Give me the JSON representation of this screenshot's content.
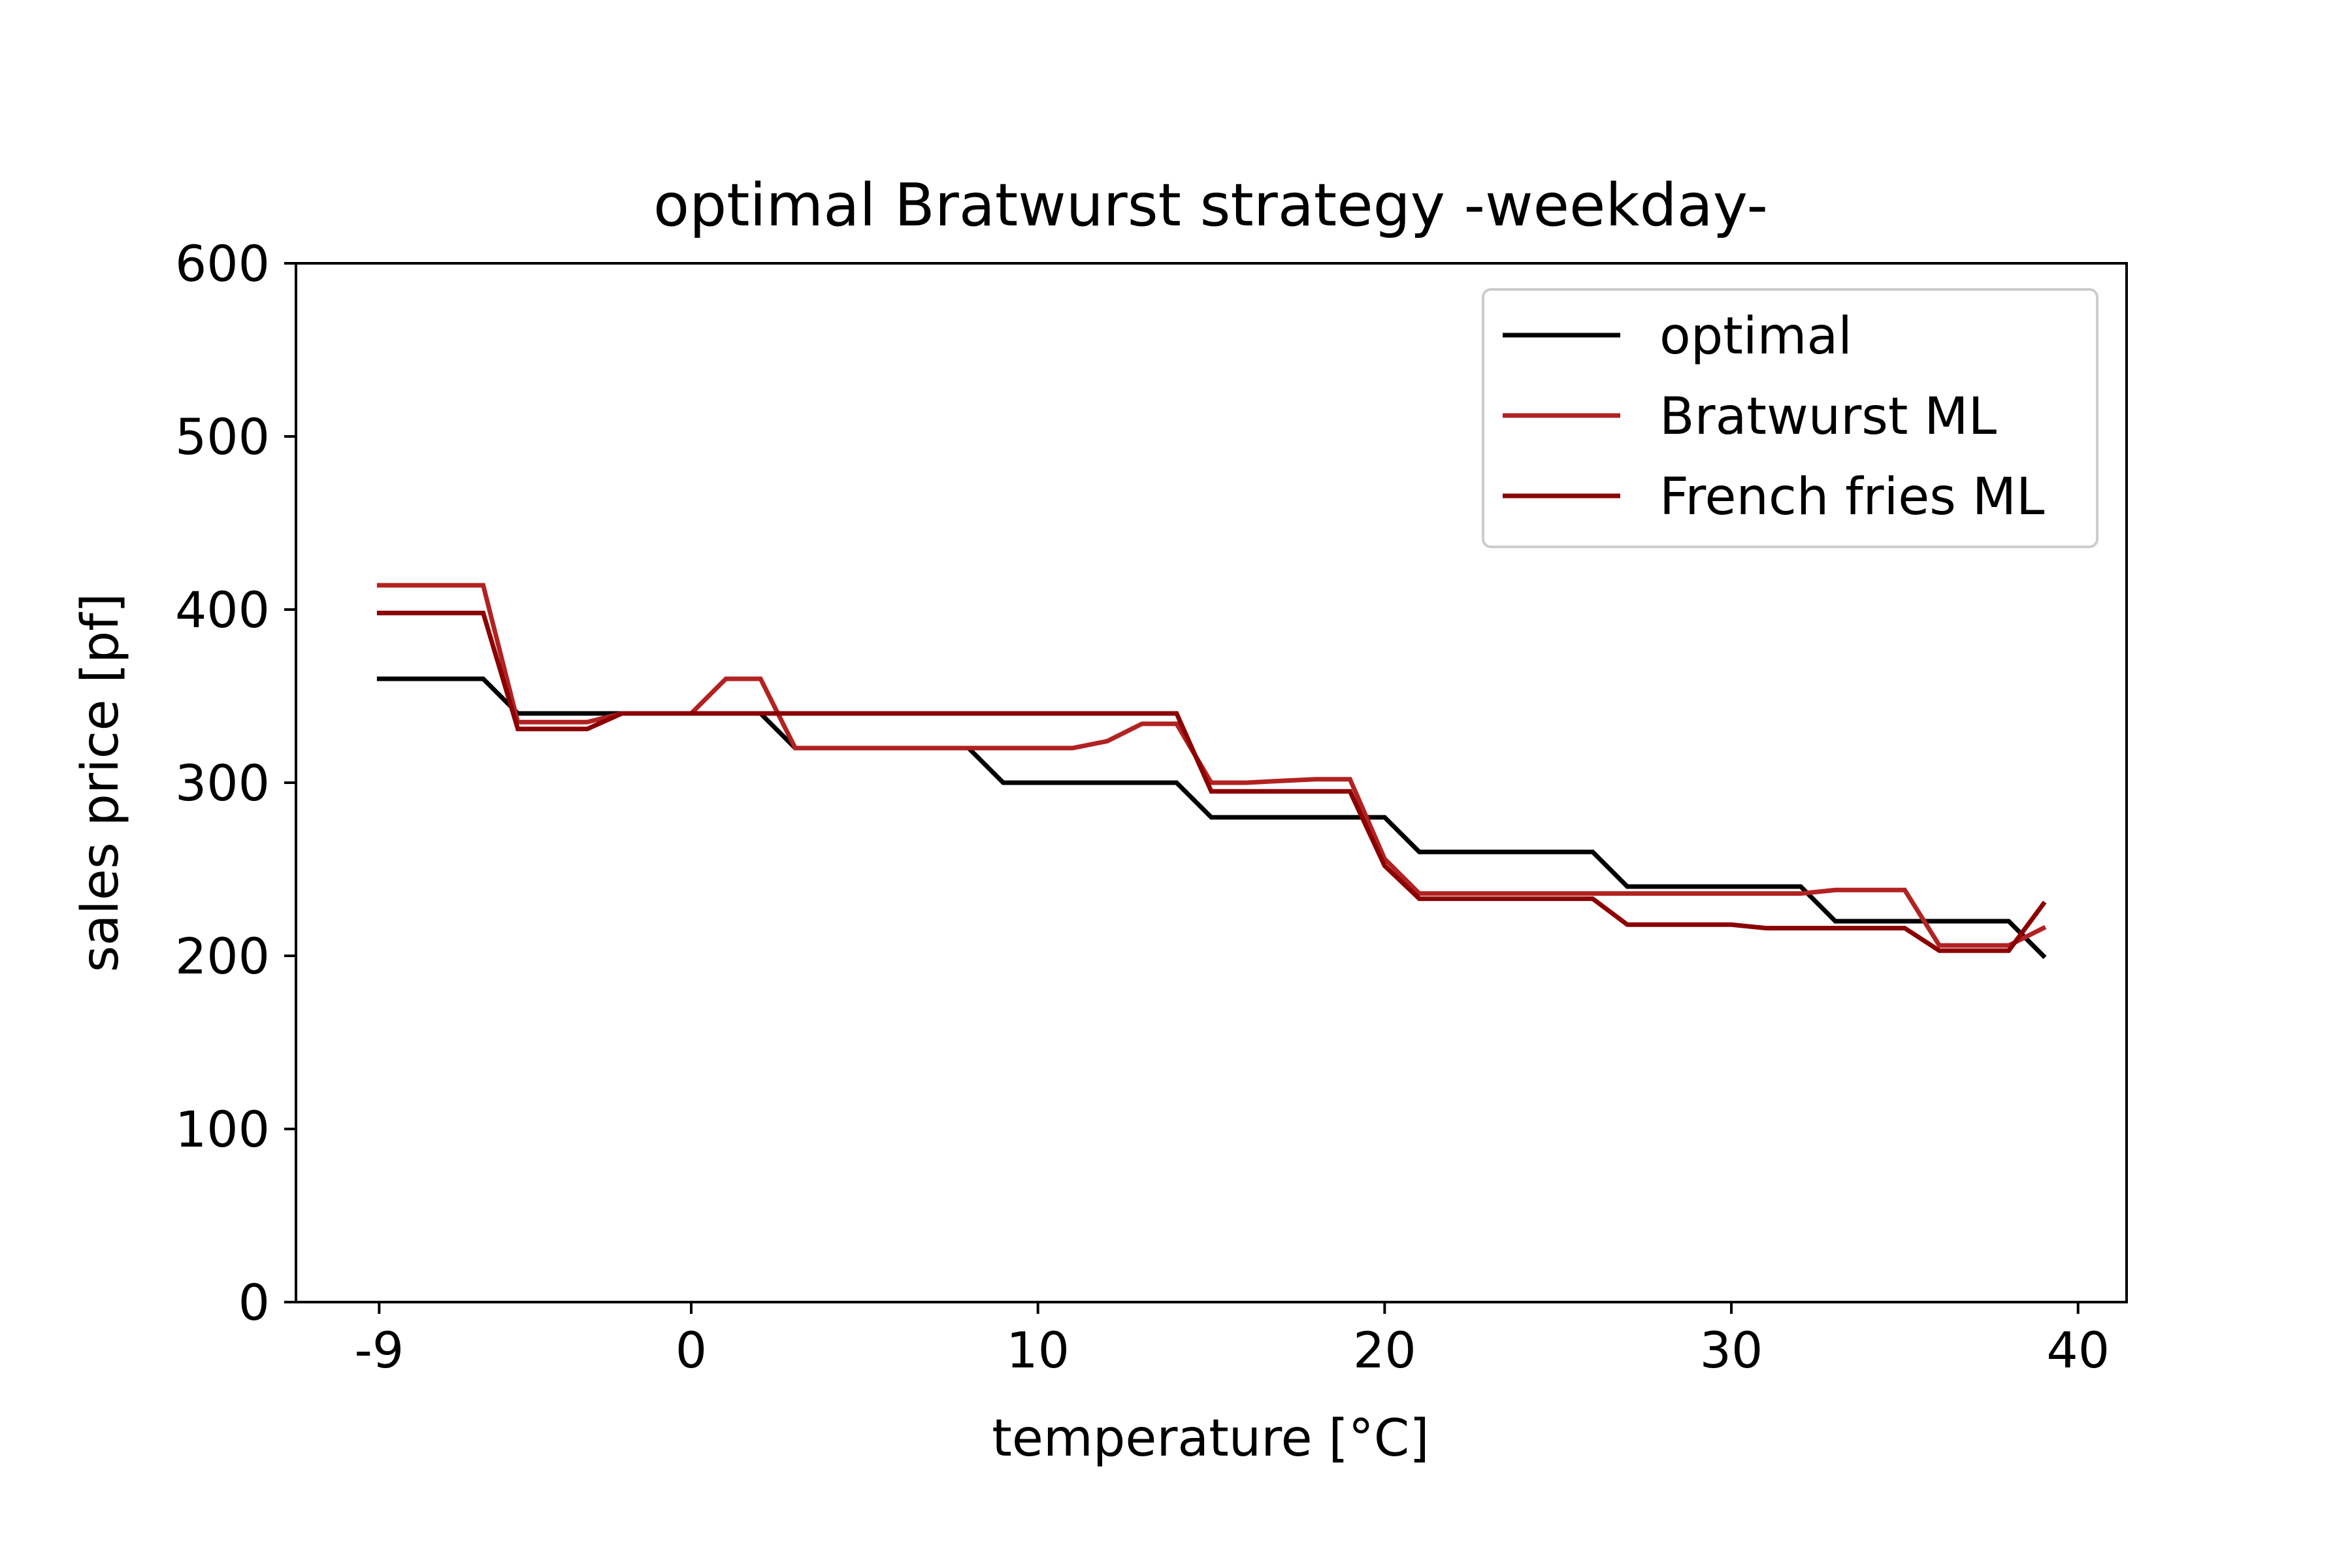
{
  "chart_data": {
    "type": "line",
    "title": "optimal Bratwurst strategy -weekday-",
    "xlabel": "temperature [°C]",
    "ylabel": "sales price [pf]",
    "xlim": [
      -11.4,
      41.4
    ],
    "ylim": [
      0,
      600
    ],
    "xticks": [
      -9,
      0,
      10,
      20,
      30,
      40
    ],
    "xtick_labels": [
      "-9",
      "0",
      "10",
      "20",
      "30",
      "40"
    ],
    "yticks": [
      0,
      100,
      200,
      300,
      400,
      500,
      600
    ],
    "ytick_labels": [
      "0",
      "100",
      "200",
      "300",
      "400",
      "500",
      "600"
    ],
    "grid": false,
    "legend": "top-right",
    "series": [
      {
        "name": "optimal",
        "color": "#000000",
        "x": [
          -9,
          -6,
          -5,
          -3,
          -2,
          -1,
          0,
          1,
          2,
          3,
          4,
          5,
          6,
          7,
          8,
          9,
          10,
          11,
          12,
          13,
          14,
          15,
          16,
          17,
          18,
          19,
          20,
          21,
          22,
          23,
          24,
          25,
          26,
          27,
          28,
          29,
          30,
          31,
          32,
          33,
          34,
          35,
          36,
          37,
          38,
          39
        ],
        "y": [
          360,
          360,
          340,
          340,
          340,
          340,
          340,
          340,
          340,
          320,
          320,
          320,
          320,
          320,
          320,
          300,
          300,
          300,
          300,
          300,
          300,
          280,
          280,
          280,
          280,
          280,
          280,
          260,
          260,
          260,
          260,
          260,
          260,
          240,
          240,
          240,
          240,
          240,
          240,
          220,
          220,
          220,
          220,
          220,
          220,
          200
        ]
      },
      {
        "name": "Bratwurst ML",
        "color": "#b22222",
        "x": [
          -9,
          -6,
          -5,
          -3,
          -2,
          -1,
          0,
          1,
          2,
          3,
          4,
          5,
          6,
          7,
          8,
          9,
          10,
          11,
          12,
          13,
          14,
          15,
          16,
          17,
          18,
          19,
          20,
          21,
          22,
          23,
          24,
          25,
          26,
          27,
          28,
          29,
          30,
          31,
          32,
          33,
          34,
          35,
          36,
          37,
          38,
          39
        ],
        "y": [
          414,
          414,
          335,
          335,
          340,
          340,
          340,
          360,
          360,
          320,
          320,
          320,
          320,
          320,
          320,
          320,
          320,
          320,
          324,
          334,
          334,
          300,
          300,
          301,
          302,
          302,
          256,
          236,
          236,
          236,
          236,
          236,
          236,
          236,
          236,
          236,
          236,
          236,
          236,
          238,
          238,
          238,
          206,
          206,
          206,
          216
        ]
      },
      {
        "name": "French fries ML",
        "color": "#8b0000",
        "x": [
          -9,
          -6,
          -5,
          -3,
          -2,
          -1,
          0,
          1,
          2,
          3,
          4,
          5,
          6,
          7,
          8,
          9,
          10,
          11,
          12,
          13,
          14,
          15,
          16,
          17,
          18,
          19,
          20,
          21,
          22,
          23,
          24,
          25,
          26,
          27,
          28,
          29,
          30,
          31,
          32,
          33,
          34,
          35,
          36,
          37,
          38,
          39
        ],
        "y": [
          398,
          398,
          331,
          331,
          340,
          340,
          340,
          340,
          340,
          340,
          340,
          340,
          340,
          340,
          340,
          340,
          340,
          340,
          340,
          340,
          340,
          295,
          295,
          295,
          295,
          295,
          252,
          233,
          233,
          233,
          233,
          233,
          233,
          218,
          218,
          218,
          218,
          216,
          216,
          216,
          216,
          216,
          203,
          203,
          203,
          230
        ]
      }
    ]
  }
}
